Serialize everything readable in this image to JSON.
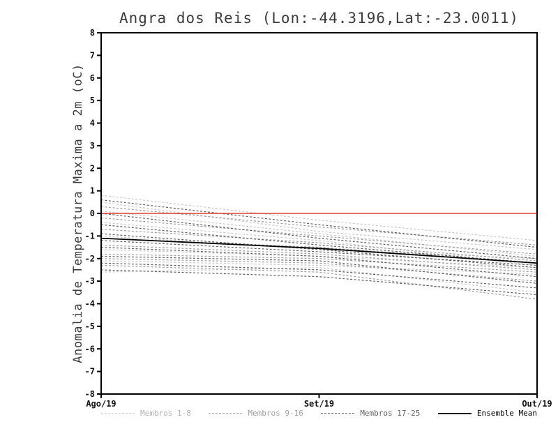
{
  "header": {
    "title": "Angra dos Reis (Lon:-44.3196,Lat:-23.0011)"
  },
  "chart_data": {
    "type": "line",
    "title": "Angra dos Reis (Lon:-44.3196,Lat:-23.0011)",
    "ylabel": "Anomalia de Temperatura Maxima a 2m (oC)",
    "xlabel": "",
    "x_tick_labels": [
      "Ago/19",
      "Set/19",
      "Out/19"
    ],
    "ylim": [
      -8,
      8
    ],
    "y_ticks": [
      -8,
      -7,
      -6,
      -5,
      -4,
      -3,
      -2,
      -1,
      0,
      1,
      2,
      3,
      4,
      5,
      6,
      7,
      8
    ],
    "grid": false,
    "legend_position": "bottom",
    "zero_line": {
      "value": 0,
      "color": "#e23b2e"
    },
    "frame_color": "#000000",
    "groups": [
      {
        "name": "Membros 1-8",
        "color": "#c8c8c8",
        "style": "dashed",
        "series": [
          [
            0.8,
            -0.3,
            -1.2
          ],
          [
            0.5,
            -0.8,
            -1.6
          ],
          [
            0.1,
            -0.9,
            -1.9
          ],
          [
            -0.4,
            -1.2,
            -2.3
          ],
          [
            -1.0,
            -1.6,
            -2.0
          ],
          [
            -1.6,
            -1.9,
            -2.4
          ],
          [
            -2.1,
            -2.3,
            -2.7
          ],
          [
            -2.6,
            -2.4,
            -3.5
          ]
        ]
      },
      {
        "name": "Membros 9-16",
        "color": "#9f9f9f",
        "style": "dashed",
        "series": [
          [
            0.3,
            -0.6,
            -1.4
          ],
          [
            -0.2,
            -1.0,
            -1.8
          ],
          [
            -0.7,
            -1.3,
            -2.1
          ],
          [
            -1.1,
            -1.5,
            -2.2
          ],
          [
            -1.4,
            -1.8,
            -2.5
          ],
          [
            -1.8,
            -2.0,
            -2.6
          ],
          [
            -2.0,
            -2.2,
            -3.0
          ],
          [
            -2.3,
            -2.6,
            -3.8
          ]
        ]
      },
      {
        "name": "Membros 17-25",
        "color": "#606060",
        "style": "dashed",
        "series": [
          [
            0.6,
            -0.5,
            -1.5
          ],
          [
            0.0,
            -1.1,
            -2.0
          ],
          [
            -0.5,
            -1.4,
            -2.2
          ],
          [
            -0.9,
            -1.6,
            -2.4
          ],
          [
            -1.2,
            -1.7,
            -2.3
          ],
          [
            -1.5,
            -1.9,
            -2.8
          ],
          [
            -1.9,
            -2.1,
            -3.1
          ],
          [
            -2.2,
            -2.5,
            -3.3
          ],
          [
            -2.5,
            -2.8,
            -3.6
          ]
        ]
      },
      {
        "name": "Ensemble Mean",
        "color": "#000000",
        "style": "solid",
        "series": [
          [
            -1.1,
            -1.55,
            -2.2
          ]
        ]
      }
    ]
  }
}
